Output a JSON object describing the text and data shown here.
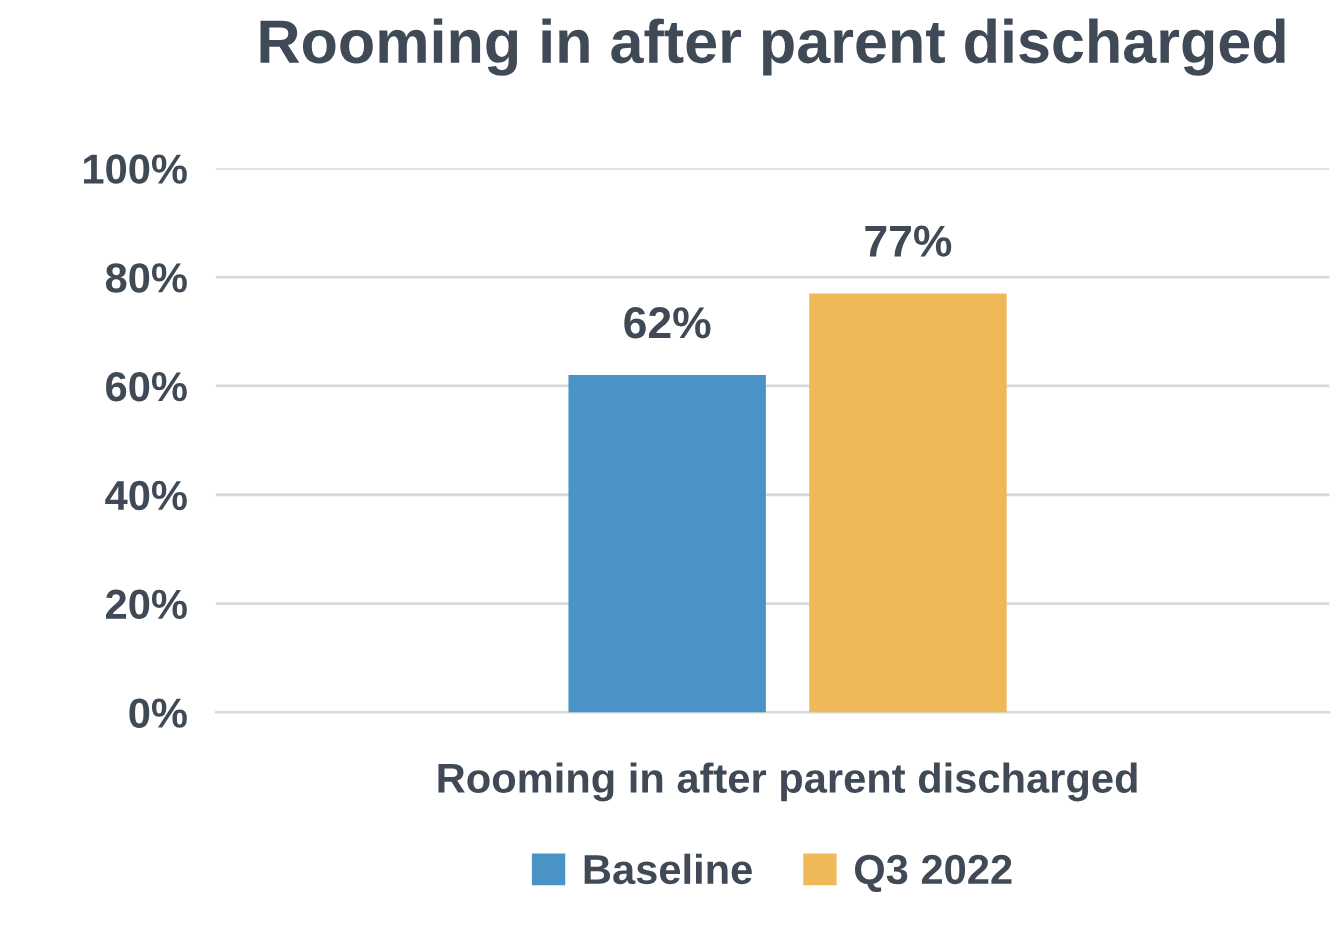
{
  "chart_data": {
    "type": "bar",
    "title": "Rooming in after parent discharged",
    "categories": [
      "Rooming in after parent discharged"
    ],
    "series": [
      {
        "name": "Baseline",
        "color": "#4a93c6",
        "values": [
          62
        ],
        "value_labels": [
          "62%"
        ]
      },
      {
        "name": "Q3 2022",
        "color": "#efb95a",
        "values": [
          77
        ],
        "value_labels": [
          "77%"
        ]
      }
    ],
    "ylim": [
      0,
      100
    ],
    "yticks": [
      {
        "value": 0,
        "label": "0%"
      },
      {
        "value": 20,
        "label": "20%"
      },
      {
        "value": 40,
        "label": "40%"
      },
      {
        "value": 60,
        "label": "60%"
      },
      {
        "value": 80,
        "label": "80%"
      },
      {
        "value": 100,
        "label": "100%"
      }
    ],
    "grid": "y",
    "legend": "bottom"
  }
}
